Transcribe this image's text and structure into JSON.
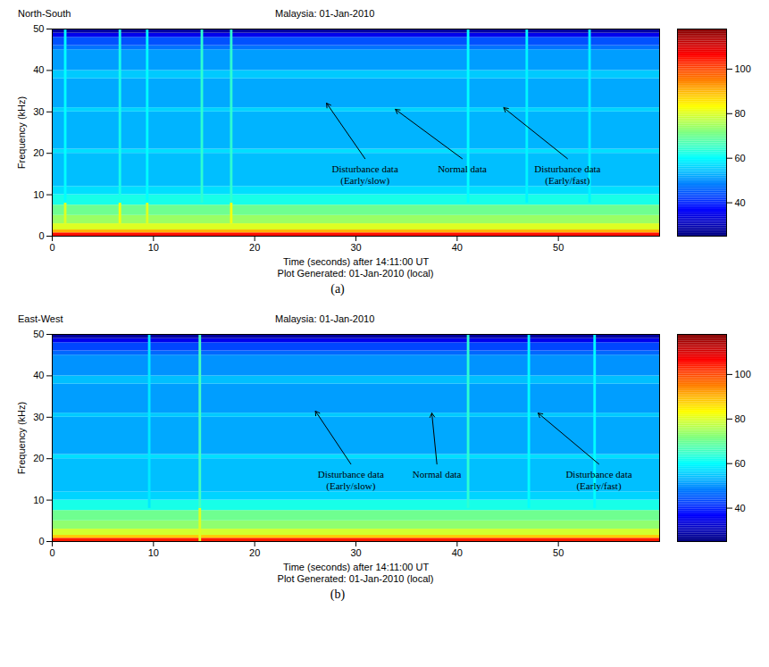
{
  "chart_data": [
    {
      "type": "heatmap",
      "subtitle": "North-South",
      "title": "Malaysia: 01-Jan-2010",
      "xlabel": "Time (seconds) after 14:11:00 UT",
      "footer": "Plot Generated: 01-Jan-2010 (local)",
      "ylabel": "Frequency (kHz)",
      "caption": "(a)",
      "xlim": [
        0,
        60
      ],
      "xticks": [
        0,
        10,
        20,
        30,
        40,
        50
      ],
      "ylim": [
        0,
        50
      ],
      "yticks": [
        0,
        10,
        20,
        30,
        40,
        50
      ],
      "colorbar": {
        "range": [
          25,
          118
        ],
        "ticks": [
          40,
          60,
          80,
          100
        ]
      },
      "bands": [
        {
          "f0": 0,
          "f1": 0.8,
          "level": 105
        },
        {
          "f0": 0.8,
          "f1": 1.5,
          "level": 90
        },
        {
          "f0": 1.5,
          "f1": 3,
          "level": 80
        },
        {
          "f0": 3,
          "f1": 5,
          "level": 74
        },
        {
          "f0": 5,
          "f1": 7.5,
          "level": 70
        },
        {
          "f0": 7.5,
          "f1": 10,
          "level": 62
        },
        {
          "f0": 10,
          "f1": 12,
          "level": 57
        },
        {
          "f0": 12,
          "f1": 20,
          "level": 54
        },
        {
          "f0": 20,
          "f1": 21,
          "level": 57
        },
        {
          "f0": 21,
          "f1": 30,
          "level": 53
        },
        {
          "f0": 30,
          "f1": 31,
          "level": 56
        },
        {
          "f0": 31,
          "f1": 38,
          "level": 52
        },
        {
          "f0": 38,
          "f1": 40,
          "level": 55
        },
        {
          "f0": 40,
          "f1": 45,
          "level": 51
        },
        {
          "f0": 45,
          "f1": 46,
          "level": 47
        },
        {
          "f0": 46,
          "f1": 48,
          "level": 44
        },
        {
          "f0": 48,
          "f1": 49,
          "level": 35
        },
        {
          "f0": 49,
          "f1": 50,
          "level": 28
        }
      ],
      "impulses": [
        {
          "t": 1.2,
          "f0": 3,
          "f1": 8,
          "level": 80
        },
        {
          "t": 1.2,
          "f0": 8,
          "f1": 50,
          "level": 60
        },
        {
          "t": 6.6,
          "f0": 3,
          "f1": 8,
          "level": 82
        },
        {
          "t": 6.6,
          "f0": 8,
          "f1": 50,
          "level": 62
        },
        {
          "t": 9.3,
          "f0": 3,
          "f1": 8,
          "level": 80
        },
        {
          "t": 9.3,
          "f0": 8,
          "f1": 50,
          "level": 60
        },
        {
          "t": 14.7,
          "f0": 8,
          "f1": 50,
          "level": 64
        },
        {
          "t": 17.6,
          "f0": 3,
          "f1": 8,
          "level": 82
        },
        {
          "t": 17.6,
          "f0": 8,
          "f1": 50,
          "level": 64
        },
        {
          "t": 41,
          "f0": 8,
          "f1": 50,
          "level": 60
        },
        {
          "t": 46.8,
          "f0": 8,
          "f1": 50,
          "level": 59
        },
        {
          "t": 53,
          "f0": 8,
          "f1": 50,
          "level": 59
        }
      ],
      "annotations": [
        {
          "text": [
            "Disturbance data",
            "(Early/slow)"
          ],
          "x": 30.9,
          "y": 17.5,
          "arrow_x": 27.1,
          "arrow_y": 32.1
        },
        {
          "text": [
            "Normal data"
          ],
          "x": 40.5,
          "y": 17.5,
          "arrow_x": 33.9,
          "arrow_y": 30.6
        },
        {
          "text": [
            "Disturbance data",
            "(Early/fast)"
          ],
          "x": 50.9,
          "y": 17.5,
          "arrow_x": 44.6,
          "arrow_y": 31
        }
      ]
    },
    {
      "type": "heatmap",
      "subtitle": "East-West",
      "title": "Malaysia: 01-Jan-2010",
      "xlabel": "Time (seconds) after 14:11:00 UT",
      "footer": "Plot Generated: 01-Jan-2010 (local)",
      "ylabel": "Frequency (kHz)",
      "caption": "(b)",
      "xlim": [
        0,
        60
      ],
      "xticks": [
        0,
        10,
        20,
        30,
        40,
        50
      ],
      "ylim": [
        0,
        50
      ],
      "yticks": [
        0,
        10,
        20,
        30,
        40,
        50
      ],
      "colorbar": {
        "range": [
          25,
          118
        ],
        "ticks": [
          40,
          60,
          80,
          100
        ]
      },
      "bands": [
        {
          "f0": 0,
          "f1": 0.8,
          "level": 104
        },
        {
          "f0": 0.8,
          "f1": 1.5,
          "level": 88
        },
        {
          "f0": 1.5,
          "f1": 3,
          "level": 79
        },
        {
          "f0": 3,
          "f1": 5,
          "level": 73
        },
        {
          "f0": 5,
          "f1": 7.5,
          "level": 70
        },
        {
          "f0": 7.5,
          "f1": 10,
          "level": 62
        },
        {
          "f0": 10,
          "f1": 12,
          "level": 56
        },
        {
          "f0": 12,
          "f1": 20,
          "level": 54
        },
        {
          "f0": 20,
          "f1": 21,
          "level": 57
        },
        {
          "f0": 21,
          "f1": 30,
          "level": 52
        },
        {
          "f0": 30,
          "f1": 31,
          "level": 55
        },
        {
          "f0": 31,
          "f1": 38,
          "level": 51
        },
        {
          "f0": 38,
          "f1": 40,
          "level": 54
        },
        {
          "f0": 40,
          "f1": 45,
          "level": 50
        },
        {
          "f0": 45,
          "f1": 46,
          "level": 46
        },
        {
          "f0": 46,
          "f1": 48,
          "level": 43
        },
        {
          "f0": 48,
          "f1": 49,
          "level": 35
        },
        {
          "f0": 49,
          "f1": 50,
          "level": 28
        }
      ],
      "impulses": [
        {
          "t": 9.5,
          "f0": 8,
          "f1": 50,
          "level": 58
        },
        {
          "t": 14.5,
          "f0": 0,
          "f1": 8,
          "level": 80
        },
        {
          "t": 14.5,
          "f0": 8,
          "f1": 50,
          "level": 66
        },
        {
          "t": 41,
          "f0": 8,
          "f1": 50,
          "level": 64
        },
        {
          "t": 47,
          "f0": 8,
          "f1": 50,
          "level": 60
        },
        {
          "t": 53.5,
          "f0": 8,
          "f1": 50,
          "level": 60
        }
      ],
      "annotations": [
        {
          "text": [
            "Disturbance data",
            "(Early/slow)"
          ],
          "x": 29.5,
          "y": 17.5,
          "arrow_x": 26,
          "arrow_y": 31.5
        },
        {
          "text": [
            "Normal data"
          ],
          "x": 38,
          "y": 17.5,
          "arrow_x": 37.5,
          "arrow_y": 31
        },
        {
          "text": [
            "Disturbance data",
            "(Early/fast)"
          ],
          "x": 54,
          "y": 17.5,
          "arrow_x": 48,
          "arrow_y": 31
        }
      ]
    }
  ]
}
